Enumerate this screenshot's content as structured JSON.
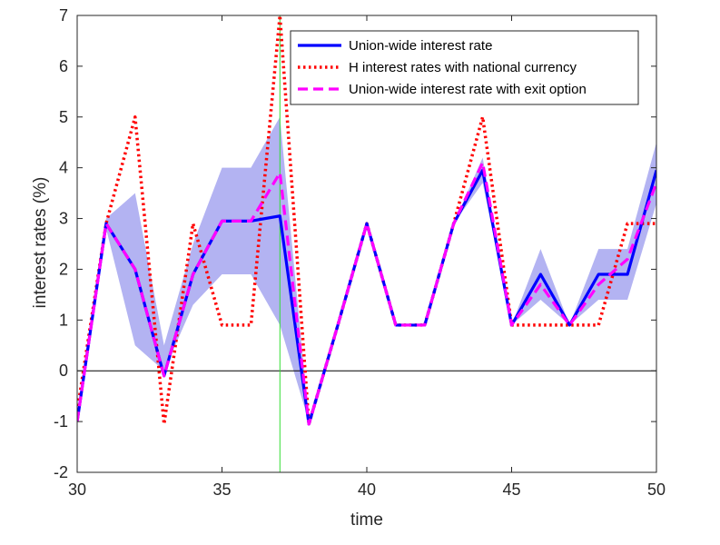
{
  "chart_data": {
    "type": "line",
    "title": "",
    "xlabel": "time",
    "ylabel": "interest rates (%)",
    "xlim": [
      30,
      50
    ],
    "ylim": [
      -2,
      7
    ],
    "xticks": [
      30,
      35,
      40,
      45,
      50
    ],
    "yticks": [
      -2,
      -1,
      0,
      1,
      2,
      3,
      4,
      5,
      6,
      7
    ],
    "grid": false,
    "legend_position": "top-right",
    "zero_line": 0,
    "vertical_marker_x": 37,
    "x": [
      30,
      31,
      32,
      33,
      34,
      35,
      36,
      37,
      38,
      39,
      40,
      41,
      42,
      43,
      44,
      45,
      46,
      47,
      48,
      49,
      50
    ],
    "band": {
      "color": "#b3b3f2",
      "lower": [
        -1.0,
        2.8,
        0.5,
        0.0,
        1.3,
        1.9,
        1.9,
        0.9,
        -1.0,
        0.9,
        2.9,
        0.9,
        0.9,
        2.9,
        3.7,
        0.9,
        1.4,
        0.9,
        1.4,
        1.4,
        3.3
      ],
      "upper": [
        -1.0,
        3.0,
        3.5,
        0.5,
        2.5,
        4.0,
        4.0,
        5.0,
        -1.0,
        0.9,
        2.9,
        0.9,
        0.9,
        2.9,
        4.2,
        0.9,
        2.4,
        0.9,
        2.4,
        2.4,
        4.5
      ]
    },
    "series": [
      {
        "name": "Union-wide interest rate",
        "color": "#0000ff",
        "style": "solid",
        "values": [
          -1.0,
          2.9,
          2.0,
          -0.1,
          1.9,
          2.95,
          2.95,
          3.05,
          -1.05,
          0.9,
          2.9,
          0.9,
          0.9,
          2.9,
          3.95,
          0.9,
          1.9,
          0.9,
          1.9,
          1.9,
          3.95
        ]
      },
      {
        "name": "H interest rates with national currency",
        "color": "#ff0000",
        "style": "dotted",
        "values": [
          -0.8,
          2.9,
          5.0,
          -1.05,
          2.9,
          0.9,
          0.9,
          7.0,
          -1.05,
          0.9,
          2.9,
          0.9,
          0.9,
          2.9,
          5.0,
          0.9,
          0.9,
          0.9,
          0.9,
          2.9,
          2.9
        ]
      },
      {
        "name": "Union-wide interest rate with exit option",
        "color": "#ff00ff",
        "style": "dashed",
        "values": [
          -1.0,
          2.9,
          2.0,
          -0.1,
          1.9,
          2.95,
          2.95,
          3.9,
          -1.05,
          0.9,
          2.9,
          0.9,
          0.9,
          2.9,
          4.1,
          0.9,
          1.7,
          0.9,
          1.7,
          2.2,
          3.7
        ]
      }
    ]
  }
}
